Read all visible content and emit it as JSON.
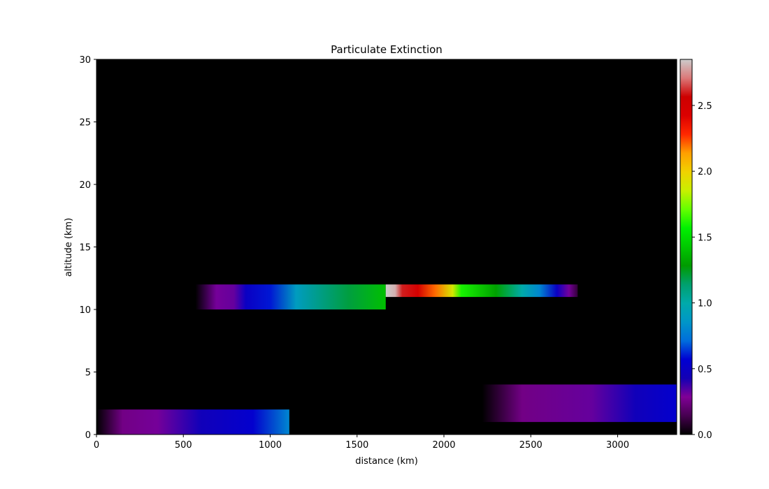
{
  "chart_data": {
    "type": "heatmap",
    "title": "Particulate Extinction",
    "xlabel": "distance (km)",
    "ylabel": "altitude (km)",
    "xlim": [
      0,
      3340
    ],
    "ylim": [
      0,
      30
    ],
    "x_ticks": [
      0,
      500,
      1000,
      1500,
      2000,
      2500,
      3000
    ],
    "y_ticks": [
      0,
      5,
      10,
      15,
      20,
      25,
      30
    ],
    "colorbar": {
      "range": [
        0,
        2.85
      ],
      "ticks": [
        0.0,
        0.5,
        1.0,
        1.5,
        2.0,
        2.5
      ],
      "tick_labels": [
        "0.0",
        "0.5",
        "1.0",
        "1.5",
        "2.0",
        "2.5"
      ],
      "colormap": "nipy_spectral"
    },
    "background_value": 0,
    "layers": [
      {
        "x_range": [
          570,
          1665
        ],
        "y_range": [
          10,
          12
        ],
        "values": [
          [
            570,
            0.0
          ],
          [
            690,
            0.3
          ],
          [
            790,
            0.32
          ],
          [
            860,
            0.5
          ],
          [
            1000,
            0.6
          ],
          [
            1150,
            0.9
          ],
          [
            1450,
            1.2
          ],
          [
            1665,
            1.4
          ]
        ]
      },
      {
        "x_range": [
          1665,
          2770
        ],
        "y_range": [
          11,
          12
        ],
        "values": [
          [
            1665,
            2.85
          ],
          [
            1720,
            2.8
          ],
          [
            1760,
            2.6
          ],
          [
            1850,
            2.5
          ],
          [
            1950,
            2.2
          ],
          [
            2050,
            1.9
          ],
          [
            2100,
            1.6
          ],
          [
            2300,
            1.3
          ],
          [
            2450,
            1.0
          ],
          [
            2550,
            0.8
          ],
          [
            2650,
            0.5
          ],
          [
            2720,
            0.3
          ],
          [
            2770,
            0.1
          ]
        ]
      },
      {
        "x_range": [
          0,
          1110
        ],
        "y_range": [
          0,
          2
        ],
        "values": [
          [
            0,
            0.0
          ],
          [
            150,
            0.25
          ],
          [
            350,
            0.3
          ],
          [
            600,
            0.45
          ],
          [
            900,
            0.55
          ],
          [
            1110,
            0.8
          ]
        ]
      },
      {
        "x_range": [
          2220,
          3340
        ],
        "y_range": [
          1,
          4
        ],
        "values": [
          [
            2220,
            0.0
          ],
          [
            2450,
            0.25
          ],
          [
            2850,
            0.32
          ],
          [
            3100,
            0.45
          ],
          [
            3340,
            0.55
          ]
        ]
      }
    ]
  }
}
